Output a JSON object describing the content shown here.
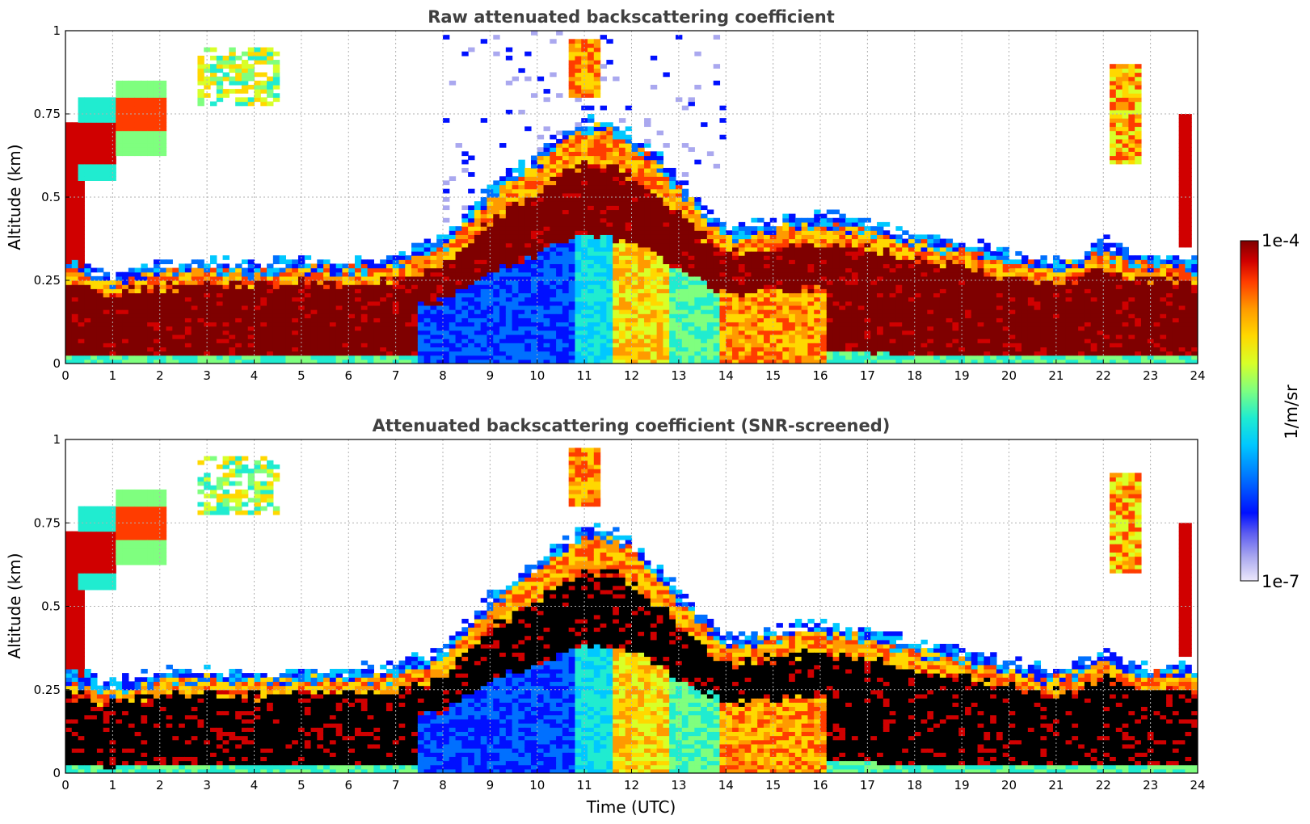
{
  "chart_data": [
    {
      "type": "heatmap",
      "title": "Raw attenuated backscattering coefficient",
      "xlabel": "",
      "ylabel": "Altitude (km)",
      "xlim": [
        0,
        24
      ],
      "ylim": [
        0,
        1
      ],
      "x_ticks": [
        "0",
        "1",
        "2",
        "3",
        "4",
        "5",
        "6",
        "7",
        "8",
        "9",
        "10",
        "11",
        "12",
        "13",
        "14",
        "15",
        "16",
        "17",
        "18",
        "19",
        "20",
        "21",
        "22",
        "23",
        "24"
      ],
      "y_ticks": [
        "0",
        "0.25",
        "0.5",
        "0.75",
        "1"
      ],
      "grid": true,
      "screened": false,
      "boundary_layer_top_km": {
        "time_utc": [
          0,
          1,
          1.5,
          2,
          3,
          4,
          5,
          6,
          7,
          7.5,
          8,
          8.5,
          9,
          10,
          10.5,
          11,
          11.5,
          12,
          12.5,
          13,
          13.5,
          14,
          15,
          16,
          17,
          18,
          19,
          20,
          21,
          21.5,
          22,
          22.5,
          23,
          23.5,
          24
        ],
        "top_km": [
          0.28,
          0.24,
          0.26,
          0.27,
          0.28,
          0.27,
          0.28,
          0.28,
          0.29,
          0.32,
          0.34,
          0.42,
          0.5,
          0.6,
          0.66,
          0.7,
          0.7,
          0.66,
          0.6,
          0.52,
          0.45,
          0.38,
          0.4,
          0.42,
          0.4,
          0.36,
          0.34,
          0.3,
          0.28,
          0.3,
          0.34,
          0.3,
          0.29,
          0.3,
          0.28
        ]
      }
    },
    {
      "type": "heatmap",
      "title": "Attenuated backscattering coefficient (SNR-screened)",
      "xlabel": "Time (UTC)",
      "ylabel": "Altitude (km)",
      "xlim": [
        0,
        24
      ],
      "ylim": [
        0,
        1
      ],
      "x_ticks": [
        "0",
        "1",
        "2",
        "3",
        "4",
        "5",
        "6",
        "7",
        "8",
        "9",
        "10",
        "11",
        "12",
        "13",
        "14",
        "15",
        "16",
        "17",
        "18",
        "19",
        "20",
        "21",
        "22",
        "23",
        "24"
      ],
      "y_ticks": [
        "0",
        "0.25",
        "0.5",
        "0.75",
        "1"
      ],
      "grid": true,
      "screened": true
    }
  ],
  "colorbar": {
    "label": "1/m/sr",
    "max_label": "1e-4",
    "min_label": "1e-7",
    "scale": "log",
    "range": [
      1e-07,
      0.0001
    ],
    "colors": [
      "#ece8fb",
      "#aaa8ef",
      "#5c5cf0",
      "#0010ff",
      "#0070ff",
      "#00c8ff",
      "#20ecd0",
      "#7fff7f",
      "#d8ff28",
      "#ffd800",
      "#ff9a00",
      "#ff3c00",
      "#d00000",
      "#7f0000"
    ],
    "saturated_color": "#000000"
  }
}
